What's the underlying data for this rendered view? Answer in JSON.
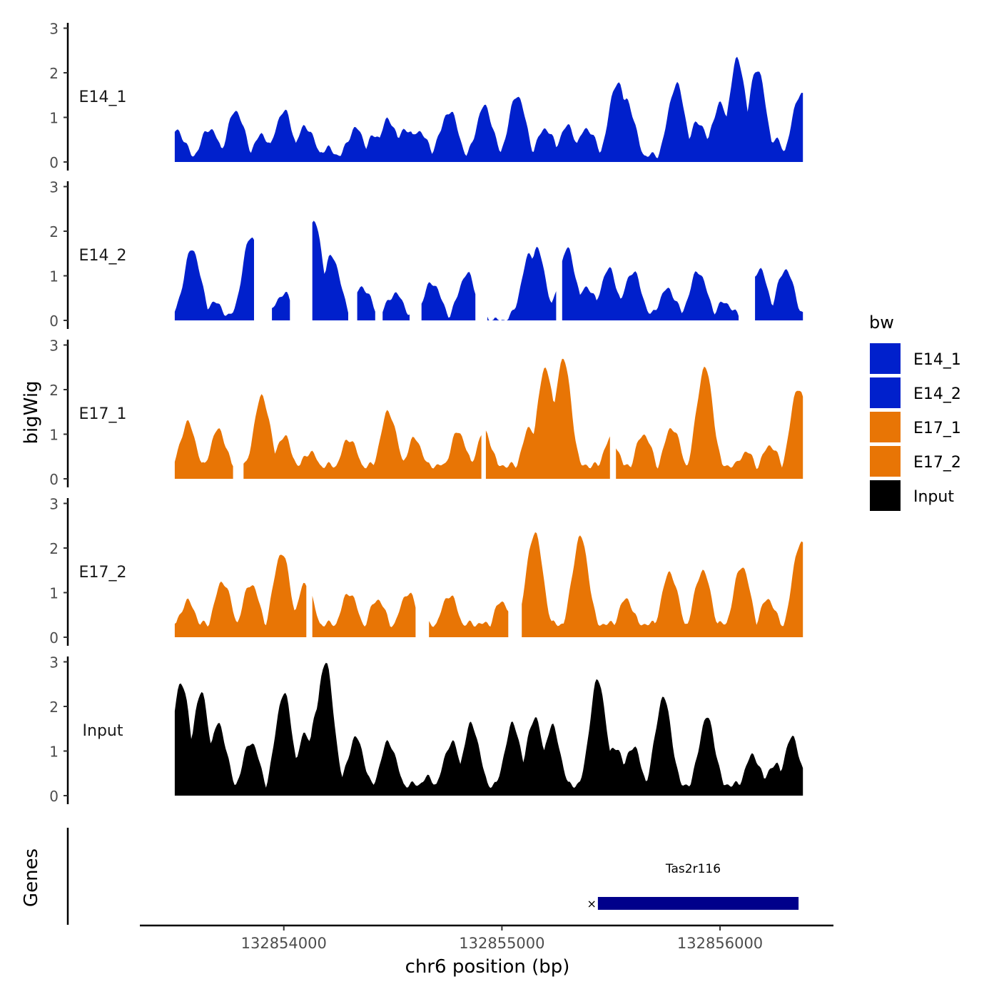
{
  "chart_data": {
    "type": "area",
    "ylabel": "bigWig",
    "xlabel": "chr6 position (bp)",
    "gene_panel_label": "Genes",
    "x_ticks": [
      132854000,
      132855000,
      132856000
    ],
    "x_tick_labels": [
      "132854000",
      "132855000",
      "132856000"
    ],
    "xlim": [
      132853340,
      132856520
    ],
    "ylim": [
      0,
      3
    ],
    "y_ticks": [
      0,
      1,
      2,
      3
    ],
    "y_tick_labels": [
      "0",
      "1",
      "2",
      "3"
    ],
    "legend": {
      "title": "bw",
      "position": "right",
      "entries": [
        {
          "label": "E14_1",
          "color": "#0020cc"
        },
        {
          "label": "E14_2",
          "color": "#0020cc"
        },
        {
          "label": "E17_1",
          "color": "#e87505"
        },
        {
          "label": "E17_2",
          "color": "#e87505"
        },
        {
          "label": "Input",
          "color": "#000000"
        }
      ]
    },
    "series": [
      {
        "name": "E14_1",
        "color": "#0020cc",
        "start": 132853500,
        "end": 132856380,
        "peaks": [
          [
            132853510,
            0.7
          ],
          [
            132853660,
            0.75
          ],
          [
            132853780,
            1.15
          ],
          [
            132853900,
            0.6
          ],
          [
            132854000,
            1.15
          ],
          [
            132854100,
            0.8
          ],
          [
            132854200,
            0.3
          ],
          [
            132854330,
            0.75
          ],
          [
            132854420,
            0.6
          ],
          [
            132854480,
            0.95
          ],
          [
            132854620,
            0.7
          ],
          [
            132854560,
            0.75
          ],
          [
            132854760,
            1.15
          ],
          [
            132854920,
            1.25
          ],
          [
            132854740,
            0.8
          ],
          [
            132855070,
            1.5
          ],
          [
            132855200,
            0.75
          ],
          [
            132855300,
            0.8
          ],
          [
            132855390,
            0.75
          ],
          [
            132855530,
            1.8
          ],
          [
            132855570,
            1.4
          ],
          [
            132855800,
            1.75
          ],
          [
            132855900,
            0.9
          ],
          [
            132856000,
            1.3
          ],
          [
            132856080,
            2.3
          ],
          [
            132856170,
            2.1
          ],
          [
            132856250,
            0.5
          ],
          [
            132856370,
            1.55
          ]
        ],
        "gaps": [],
        "base": 0.15
      },
      {
        "name": "E14_2",
        "color": "#0020cc",
        "start": 132853500,
        "end": 132856380,
        "peaks": [
          [
            132853580,
            1.6
          ],
          [
            132853680,
            0.4
          ],
          [
            132853850,
            1.9
          ],
          [
            132854000,
            0.6
          ],
          [
            132854140,
            2.2
          ],
          [
            132854220,
            1.45
          ],
          [
            132854360,
            0.75
          ],
          [
            132854510,
            0.6
          ],
          [
            132854680,
            0.85
          ],
          [
            132854840,
            1.05
          ],
          [
            132855130,
            1.5
          ],
          [
            132855160,
            1.6
          ],
          [
            132855300,
            1.6
          ],
          [
            132855390,
            0.75
          ],
          [
            132855490,
            1.15
          ],
          [
            132855600,
            1.1
          ],
          [
            132855760,
            0.7
          ],
          [
            132855900,
            1.1
          ],
          [
            132856020,
            0.4
          ],
          [
            132856180,
            1.15
          ],
          [
            132856300,
            1.15
          ]
        ],
        "gaps": [
          [
            132853870,
            132853940
          ],
          [
            132854030,
            132854130
          ],
          [
            132854300,
            132854330
          ],
          [
            132854420,
            132854450
          ],
          [
            132854580,
            132854630
          ],
          [
            132854880,
            132854930
          ],
          [
            132855250,
            132855270
          ],
          [
            132856090,
            132856160
          ]
        ],
        "base": 0.0
      },
      {
        "name": "E17_1",
        "color": "#e87505",
        "start": 132853500,
        "end": 132856380,
        "peaks": [
          [
            132853560,
            1.25
          ],
          [
            132853700,
            1.1
          ],
          [
            132853900,
            1.85
          ],
          [
            132854000,
            0.95
          ],
          [
            132854120,
            0.6
          ],
          [
            132854300,
            0.9
          ],
          [
            132854480,
            1.5
          ],
          [
            132854600,
            0.9
          ],
          [
            132854800,
            1.05
          ],
          [
            132854920,
            1.05
          ],
          [
            132855130,
            1.15
          ],
          [
            132855200,
            2.5
          ],
          [
            132855280,
            2.7
          ],
          [
            132855500,
            0.9
          ],
          [
            132855650,
            1.0
          ],
          [
            132855780,
            1.15
          ],
          [
            132855930,
            2.5
          ],
          [
            132856120,
            0.6
          ],
          [
            132856230,
            0.75
          ],
          [
            132856360,
            2.05
          ]
        ],
        "gaps": [
          [
            132853770,
            132853810
          ],
          [
            132854910,
            132854920
          ],
          [
            132855500,
            132855520
          ]
        ],
        "base": 0.3
      },
      {
        "name": "E17_2",
        "color": "#e87505",
        "start": 132853500,
        "end": 132856380,
        "peaks": [
          [
            132853560,
            0.8
          ],
          [
            132853720,
            1.25
          ],
          [
            132853850,
            1.2
          ],
          [
            132853990,
            1.9
          ],
          [
            132854100,
            1.2
          ],
          [
            132854300,
            1.0
          ],
          [
            132854430,
            0.85
          ],
          [
            132854570,
            1.0
          ],
          [
            132854760,
            0.95
          ],
          [
            132855000,
            0.8
          ],
          [
            132855150,
            2.35
          ],
          [
            132855200,
            0.3
          ],
          [
            132855360,
            2.25
          ],
          [
            132855570,
            0.85
          ],
          [
            132855770,
            1.45
          ],
          [
            132855920,
            1.5
          ],
          [
            132856100,
            1.6
          ],
          [
            132856220,
            0.85
          ],
          [
            132856370,
            2.15
          ]
        ],
        "gaps": [
          [
            132854110,
            132854130
          ],
          [
            132854610,
            132854660
          ],
          [
            132855030,
            132855090
          ]
        ],
        "base": 0.3
      },
      {
        "name": "Input",
        "color": "#000000",
        "start": 132853500,
        "end": 132856380,
        "peaks": [
          [
            132853530,
            2.55
          ],
          [
            132853620,
            2.3
          ],
          [
            132853700,
            1.6
          ],
          [
            132853850,
            1.2
          ],
          [
            132854000,
            2.3
          ],
          [
            132854100,
            1.4
          ],
          [
            132854160,
            2.0
          ],
          [
            132854190,
            3.0
          ],
          [
            132854330,
            1.3
          ],
          [
            132854480,
            1.2
          ],
          [
            132854660,
            0.4
          ],
          [
            132854770,
            1.2
          ],
          [
            132854860,
            1.6
          ],
          [
            132855050,
            1.6
          ],
          [
            132855150,
            1.75
          ],
          [
            132855230,
            1.55
          ],
          [
            132855440,
            2.6
          ],
          [
            132855520,
            1.1
          ],
          [
            132855600,
            1.1
          ],
          [
            132855740,
            2.2
          ],
          [
            132855940,
            1.75
          ],
          [
            132856150,
            0.9
          ],
          [
            132856250,
            0.7
          ],
          [
            132856330,
            1.3
          ]
        ],
        "gaps": [],
        "base": 0.25
      }
    ],
    "genes": [
      {
        "name": "Tas2r116",
        "start": 132855440,
        "end": 132856360,
        "strand": "-",
        "color": "#00008b"
      }
    ]
  }
}
